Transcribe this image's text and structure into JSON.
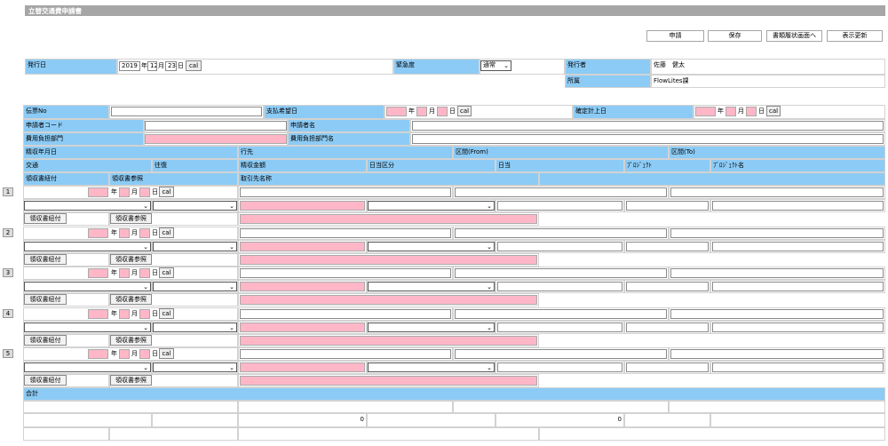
{
  "window_title": "立替交通費申請書",
  "toolbar": {
    "apply": "申請",
    "save": "保存",
    "to_status": "書類履状画面へ",
    "refresh": "表示更新"
  },
  "header": {
    "issue_date_label": "発行日",
    "year": "2019",
    "month": "12",
    "day": "23",
    "y_unit": "年",
    "m_unit": "月",
    "d_unit": "日",
    "cal": "cal",
    "urgency_label": "緊急度",
    "urgency_value": "通常",
    "issuer_label": "発行者",
    "issuer_value": "佐藤　健太",
    "dept_label": "所属",
    "dept_value": "FlowLites課"
  },
  "form": {
    "slip_no": "伝票No",
    "pay_date": "支払希望日",
    "post_date": "確定計上日",
    "applicant_code": "申請者コード",
    "applicant_name": "申請者名",
    "cost_dept": "費用負担部門",
    "cost_dept_name": "費用負担部門名"
  },
  "columns": {
    "row1": [
      "精収年月日",
      "行先",
      "区間(From)",
      "区間(To)"
    ],
    "row2": [
      "交通",
      "往復",
      "精収金額",
      "日当区分",
      "日当",
      "ﾌﾟﾛｼﾞｪｸﾄ",
      "ﾌﾟﾛｼﾞｪｸﾄ名"
    ],
    "row3": [
      "領収書紐付",
      "領収書参照",
      "取引先名称"
    ]
  },
  "rows": [
    {
      "no": "1",
      "attach": "領収書紐付",
      "ref": "領収書参照"
    },
    {
      "no": "2",
      "attach": "領収書紐付",
      "ref": "領収書参照"
    },
    {
      "no": "3",
      "attach": "領収書紐付",
      "ref": "領収書参照"
    },
    {
      "no": "4",
      "attach": "領収書紐付",
      "ref": "領収書参照"
    },
    {
      "no": "5",
      "attach": "領収書紐付",
      "ref": "領収書参照"
    }
  ],
  "totals": {
    "label": "合計",
    "amount": "0",
    "allowance": "0"
  },
  "icons": {
    "dropdown": "chevron-down-icon"
  }
}
